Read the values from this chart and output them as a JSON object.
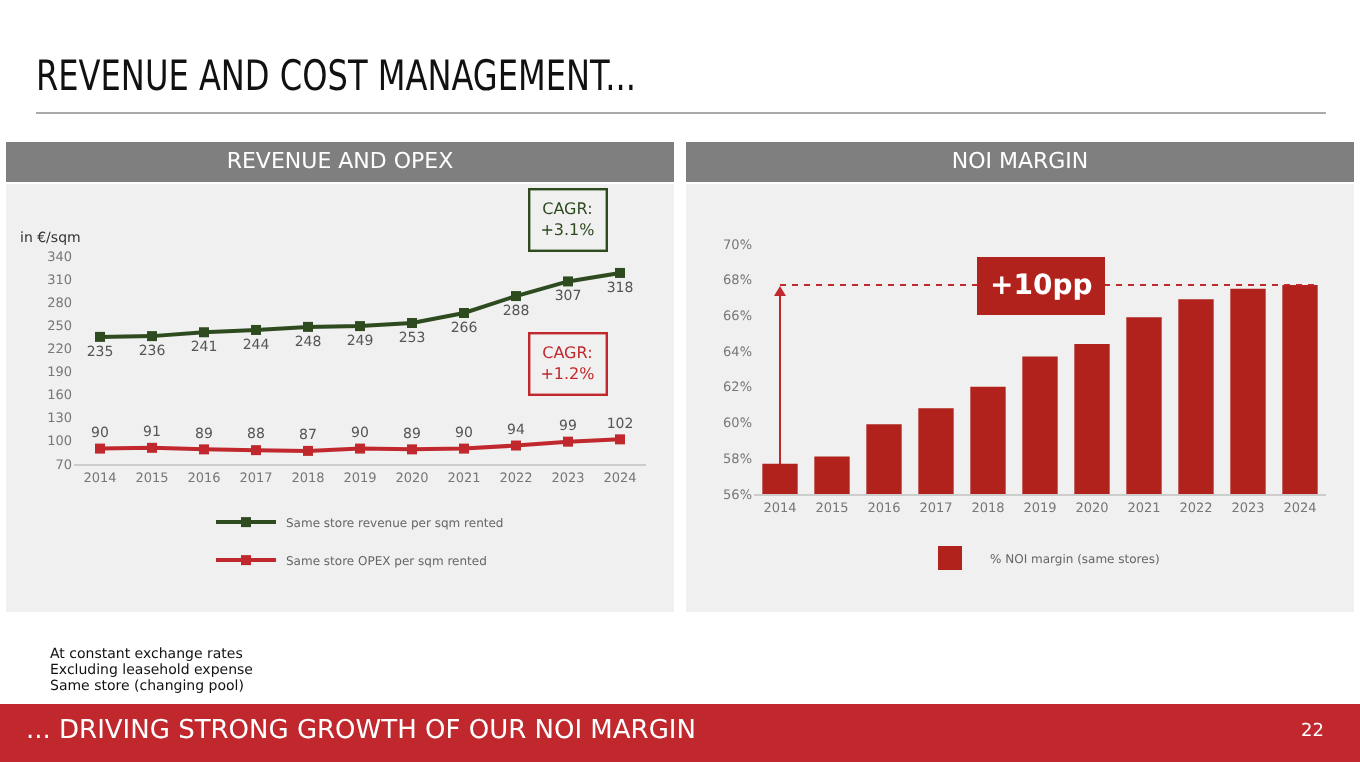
{
  "chart_data": [
    {
      "type": "other",
      "title": "REVENUE AND COST MANAGEMENT...",
      "annotations": [
        "At constant exchange rates",
        "Excluding leasehold expense",
        "Same store (changing pool)",
        "... DRIVING STRONG GROWTH OF OUR NOI MARGIN",
        "22"
      ]
    },
    {
      "type": "line",
      "title": "REVENUE AND OPEX",
      "ylabel": "in €/sqm",
      "categories": [
        "2014",
        "2015",
        "2016",
        "2017",
        "2018",
        "2019",
        "2020",
        "2021",
        "2022",
        "2023",
        "2024"
      ],
      "series": [
        {
          "name": "Same store revenue per sqm rented",
          "color": "#2e4a1f",
          "values": [
            235,
            236,
            241,
            244,
            248,
            249,
            253,
            266,
            288,
            307,
            318
          ]
        },
        {
          "name": "Same store OPEX per sqm rented",
          "color": "#c0282d",
          "values": [
            90,
            91,
            89,
            88,
            87,
            90,
            89,
            90,
            94,
            99,
            102
          ]
        }
      ],
      "ylim": [
        70,
        340
      ],
      "yticks": [
        70,
        100,
        130,
        160,
        190,
        220,
        250,
        280,
        310,
        340
      ],
      "data_labels": true,
      "marker": "square",
      "legend": "bottom",
      "grid": false,
      "annotations": [
        "CAGR:\n+3.1%",
        "CAGR:\n+1.2%"
      ]
    },
    {
      "type": "bar",
      "title": "NOI MARGIN",
      "categories": [
        "2014",
        "2015",
        "2016",
        "2017",
        "2018",
        "2019",
        "2020",
        "2021",
        "2022",
        "2023",
        "2024"
      ],
      "series": [
        {
          "name": "% NOI margin (same stores)",
          "color": "#b2221c",
          "values": [
            57.7,
            58.1,
            59.9,
            60.8,
            62.0,
            63.7,
            64.4,
            65.9,
            66.9,
            67.5,
            67.7
          ]
        }
      ],
      "ylim": [
        56,
        70
      ],
      "yticks": [
        {
          "value": 56,
          "label": "56%"
        },
        {
          "value": 58,
          "label": "58%"
        },
        {
          "value": 60,
          "label": "60%"
        },
        {
          "value": 62,
          "label": "62%"
        },
        {
          "value": 64,
          "label": "64%"
        },
        {
          "value": 66,
          "label": "66%"
        },
        {
          "value": 68,
          "label": "68%"
        },
        {
          "value": 70,
          "label": "70%"
        }
      ],
      "legend": "bottom",
      "grid": false,
      "ref_lines": [
        {
          "axis": "y",
          "value": 67.7,
          "color": "#c0282d",
          "line_style": "dotted"
        }
      ],
      "annotations": [
        {
          "text": "+10pp",
          "x": "2019",
          "y": 67.7
        }
      ]
    }
  ]
}
